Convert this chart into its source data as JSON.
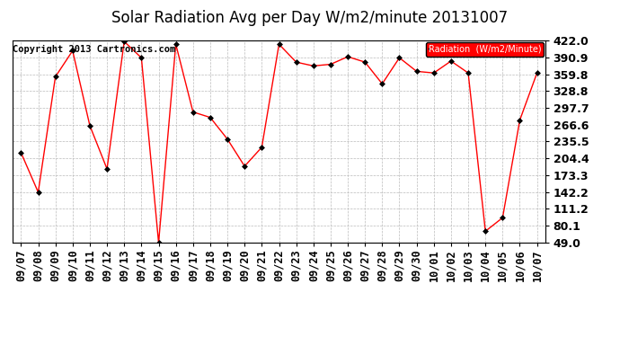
{
  "title": "Solar Radiation Avg per Day W/m2/minute 20131007",
  "copyright": "Copyright 2013 Cartronics.com",
  "legend_label": "Radiation  (W/m2/Minute)",
  "dates": [
    "09/07",
    "09/08",
    "09/09",
    "09/10",
    "09/11",
    "09/12",
    "09/13",
    "09/14",
    "09/15",
    "09/16",
    "09/17",
    "09/18",
    "09/19",
    "09/20",
    "09/21",
    "09/22",
    "09/23",
    "09/24",
    "09/25",
    "09/26",
    "09/27",
    "09/28",
    "09/29",
    "09/30",
    "10/01",
    "10/02",
    "10/03",
    "10/04",
    "10/05",
    "10/06",
    "10/07"
  ],
  "values": [
    215,
    142,
    355,
    403,
    265,
    185,
    420,
    390,
    49,
    415,
    290,
    280,
    240,
    190,
    225,
    415,
    382,
    375,
    378,
    392,
    382,
    342,
    390,
    365,
    362,
    384,
    362,
    70,
    95,
    275,
    362
  ],
  "ylim": [
    49.0,
    422.0
  ],
  "yticks": [
    49.0,
    80.1,
    111.2,
    142.2,
    173.3,
    204.4,
    235.5,
    266.6,
    297.7,
    328.8,
    359.8,
    390.9,
    422.0
  ],
  "line_color": "red",
  "marker_color": "black",
  "grid_color": "#bbbbbb",
  "bg_color": "#ffffff",
  "plot_bg_color": "#ffffff",
  "legend_bg": "red",
  "legend_text_color": "white",
  "title_fontsize": 12,
  "copyright_fontsize": 7.5,
  "tick_fontsize": 8.5,
  "ytick_fontsize": 9
}
